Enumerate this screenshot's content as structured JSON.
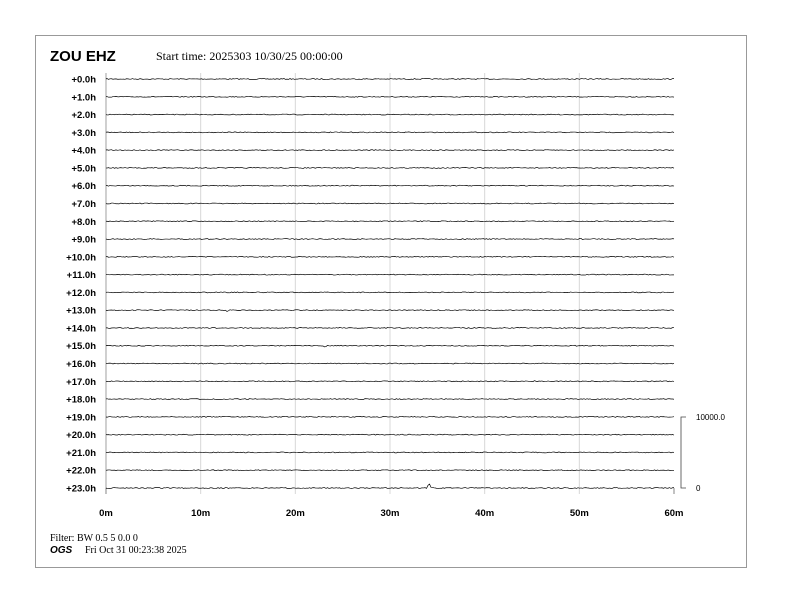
{
  "header": {
    "station": "ZOU EHZ",
    "start_time": "Start time: 2025303 10/30/25 00:00:00"
  },
  "footer": {
    "filter": "Filter: BW 0.5 5 0.0 0",
    "agency": "OGS",
    "generated": "Fri Oct 31 00:23:38 2025"
  },
  "chart_data": {
    "type": "line",
    "title": "ZOU EHZ",
    "xlabel": "",
    "ylabel": "",
    "xlim": [
      0,
      60
    ],
    "x_ticks": [
      "0m",
      "10m",
      "20m",
      "30m",
      "40m",
      "50m",
      "60m"
    ],
    "rows": [
      "+0.0h",
      "+1.0h",
      "+2.0h",
      "+3.0h",
      "+4.0h",
      "+5.0h",
      "+6.0h",
      "+7.0h",
      "+8.0h",
      "+9.0h",
      "+10.0h",
      "+11.0h",
      "+12.0h",
      "+13.0h",
      "+14.0h",
      "+15.0h",
      "+16.0h",
      "+17.0h",
      "+18.0h",
      "+19.0h",
      "+20.0h",
      "+21.0h",
      "+22.0h",
      "+23.0h"
    ],
    "grid": true,
    "scale_bar": {
      "top_label": "10000.0",
      "bottom_label": "0"
    },
    "events": [
      {
        "row": 9,
        "minute": 50.1,
        "amplitude": "small"
      },
      {
        "row": 13,
        "minute": 12.7,
        "amplitude": "small"
      },
      {
        "row": 15,
        "minute": 23.3,
        "amplitude": "small"
      },
      {
        "row": 17,
        "minute": 45.0,
        "amplitude": "small"
      },
      {
        "row": 23,
        "minute": 34.2,
        "amplitude": "large"
      }
    ],
    "trace_color": "#000000",
    "grid_color": "#d8d8d8"
  }
}
